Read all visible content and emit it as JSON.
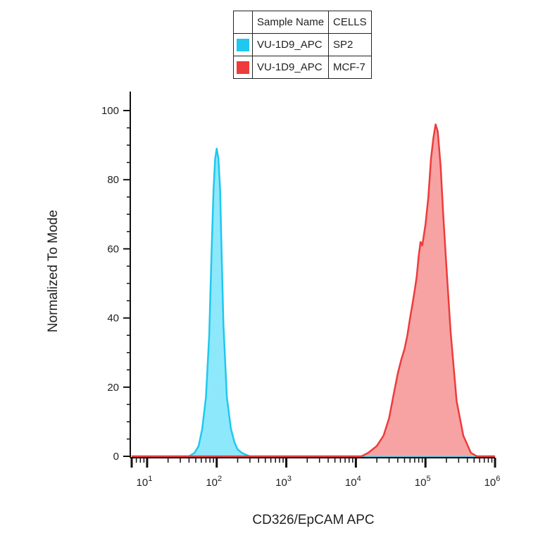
{
  "legend": {
    "headers": [
      "Sample Name",
      "CELLS"
    ],
    "rows": [
      {
        "sample": "VU-1D9_APC",
        "cells": "SP2",
        "color": "#1ec8f0"
      },
      {
        "sample": "VU-1D9_APC",
        "cells": "MCF-7",
        "color": "#ee3b3b"
      }
    ]
  },
  "chart_data": {
    "type": "area",
    "xlabel": "CD326/EpCAM APC",
    "ylabel": "Normalized To Mode",
    "x_scale": "log",
    "xlim": [
      6,
      1000000
    ],
    "ylim": [
      0,
      100
    ],
    "x_ticks": [
      {
        "value": 10,
        "base": "10",
        "exp": "1"
      },
      {
        "value": 100,
        "base": "10",
        "exp": "2"
      },
      {
        "value": 1000,
        "base": "10",
        "exp": "3"
      },
      {
        "value": 10000,
        "base": "10",
        "exp": "4"
      },
      {
        "value": 100000,
        "base": "10",
        "exp": "5"
      },
      {
        "value": 1000000,
        "base": "10",
        "exp": "6"
      }
    ],
    "y_ticks": [
      "0",
      "20",
      "40",
      "60",
      "80",
      "100"
    ],
    "series": [
      {
        "name": "SP2",
        "stroke": "#1ec8f0",
        "fill": "#8ee8fb",
        "x": [
          6,
          40,
          48,
          55,
          62,
          70,
          78,
          84,
          90,
          95,
          100,
          106,
          112,
          118,
          125,
          140,
          160,
          180,
          200,
          230,
          260,
          300,
          1000000
        ],
        "y": [
          0,
          0,
          1,
          3,
          8,
          17,
          35,
          58,
          77,
          86,
          89,
          86,
          77,
          58,
          38,
          17,
          8,
          4,
          2,
          1,
          0.5,
          0,
          0
        ]
      },
      {
        "name": "MCF-7",
        "stroke": "#ee3b3b",
        "fill": "#f7a3a3",
        "x": [
          6,
          12000,
          15000,
          20000,
          25000,
          30000,
          35000,
          40000,
          45000,
          50000,
          55000,
          60000,
          65000,
          70000,
          75000,
          80000,
          85000,
          90000,
          100000,
          110000,
          120000,
          130000,
          140000,
          150000,
          165000,
          180000,
          200000,
          230000,
          280000,
          350000,
          450000,
          550000,
          1000000
        ],
        "y": [
          0,
          0,
          1,
          3,
          6,
          11,
          18,
          24,
          28,
          31,
          35,
          40,
          44,
          48,
          52,
          58,
          62,
          61,
          67,
          75,
          86,
          92,
          96,
          94,
          84,
          70,
          55,
          36,
          16,
          6,
          1,
          0,
          0
        ]
      }
    ]
  }
}
